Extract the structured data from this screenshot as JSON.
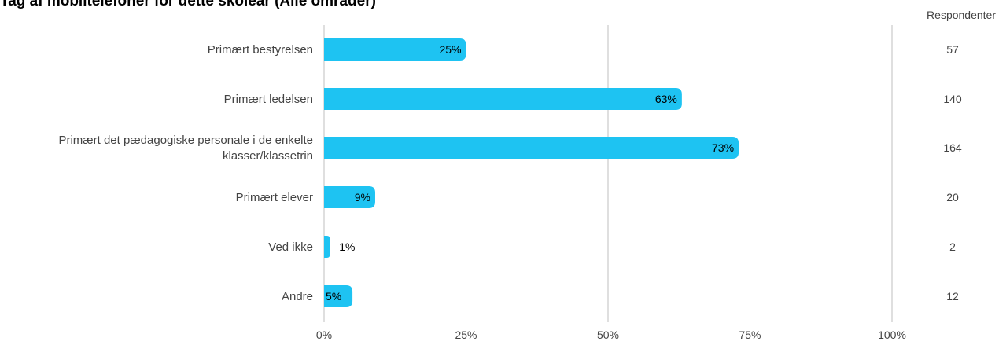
{
  "chart_data": {
    "type": "bar",
    "orientation": "horizontal",
    "title": "Tag af mobiltelefoner for dette skoleår (Alle områder)",
    "categories": [
      "Primært bestyrelsen",
      "Primært ledelsen",
      "Primært det pædagogiske personale i de enkelte klasser/klassetrin",
      "Primært elever",
      "Ved ikke",
      "Andre"
    ],
    "values": [
      25,
      63,
      73,
      9,
      1,
      5
    ],
    "value_labels": [
      "25%",
      "63%",
      "73%",
      "9%",
      "1%",
      "5%"
    ],
    "respondents_header": "Respondenter",
    "respondents": [
      "57",
      "140",
      "164",
      "20",
      "2",
      "12"
    ],
    "x_ticks": [
      "0%",
      "25%",
      "50%",
      "75%",
      "100%"
    ],
    "xlim": [
      0,
      100
    ],
    "grid": true,
    "bar_color": "#1ec3f2",
    "grid_color": "#bfbfbf"
  }
}
